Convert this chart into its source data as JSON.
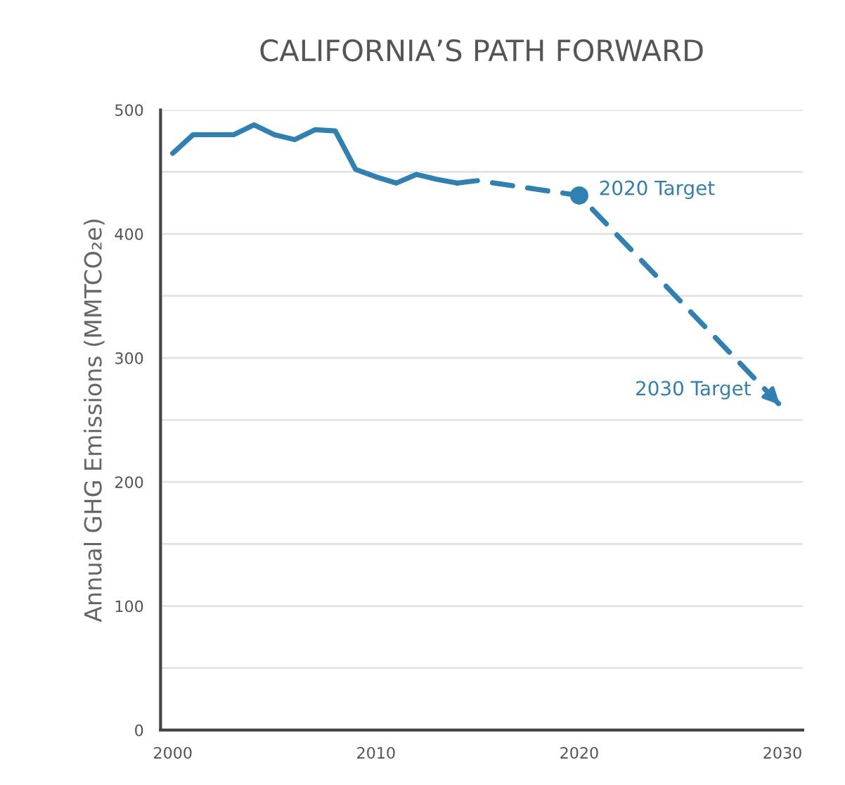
{
  "chart_data": {
    "type": "line",
    "title": "CALIFORNIA’S PATH FORWARD",
    "ylabel": "Annual GHG Emissions (MMTCO₂e)",
    "series": [
      {
        "color": "#2f80b3",
        "line_style": "solid",
        "marker": "none",
        "x": [
          2000,
          2001,
          2002,
          2003,
          2004,
          2005,
          2006,
          2007,
          2008,
          2009,
          2010,
          2011,
          2012,
          2013,
          2014
        ],
        "values": [
          465,
          480,
          480,
          480,
          488,
          480,
          476,
          484,
          483,
          452,
          446,
          441,
          448,
          444,
          441
        ]
      },
      {
        "color": "#2f80b3",
        "line_style": "dashed",
        "marker": "none",
        "x": [
          2014,
          2015,
          2020,
          2030
        ],
        "values": [
          441,
          443,
          431,
          260
        ]
      },
      {
        "type": "scatter",
        "color": "#2f80b3",
        "marker": "circle",
        "x": [
          2020
        ],
        "values": [
          431
        ]
      }
    ],
    "annotations": [
      {
        "text": "2020 Target",
        "x": 2020,
        "y": 431
      },
      {
        "text": "2030 Target",
        "x": 2030,
        "y": 260
      }
    ],
    "xlim": [
      1999.4,
      2031
    ],
    "xticks": [
      2000,
      2010,
      2020,
      2030
    ],
    "ylim": [
      0,
      500
    ],
    "yticks": [
      0,
      {
        "value": 50,
        "label": null
      },
      100,
      {
        "value": 150,
        "label": null
      },
      200,
      {
        "value": 250,
        "label": null
      },
      300,
      {
        "value": 350,
        "label": null
      },
      400,
      {
        "value": 450,
        "label": null
      },
      500
    ],
    "grid": "y",
    "legend": false
  }
}
